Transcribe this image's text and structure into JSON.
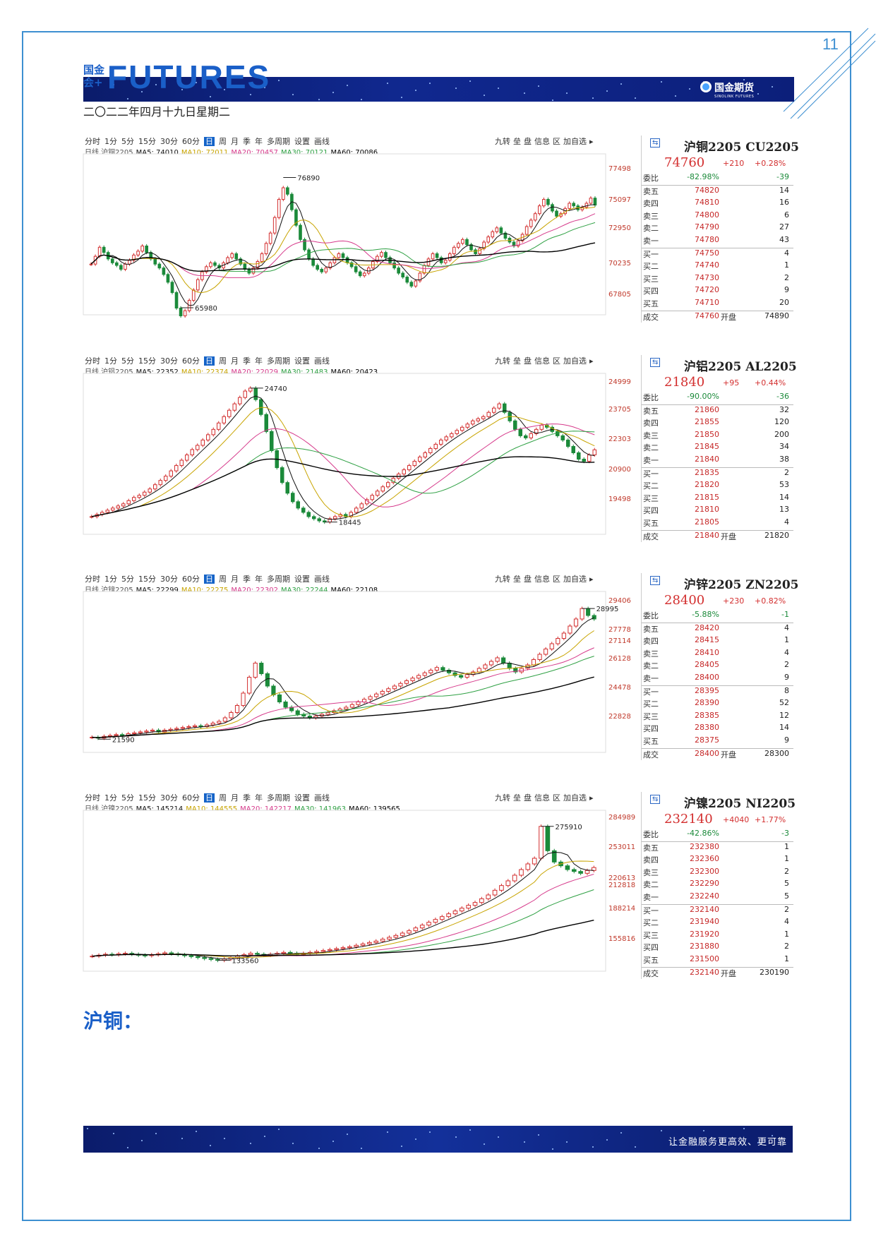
{
  "page": {
    "number": "11",
    "date": "二〇二二年四月十九日星期二"
  },
  "header": {
    "logo_cn": "国金会+",
    "logo_word": "FUTURES",
    "brand_cn": "国金期货",
    "brand_en": "SINOLINK FUTURES"
  },
  "footer": {
    "slogan": "让金融服务更高效、更可靠"
  },
  "section": {
    "title": "沪铜："
  },
  "toolbar": {
    "left": [
      "分时",
      "1分",
      "5分",
      "15分",
      "30分",
      "60分",
      "日",
      "周",
      "月",
      "季",
      "年",
      "多周期",
      "设置",
      "画线"
    ],
    "active": "日",
    "right": [
      "九转",
      "垒",
      "盘",
      "信息",
      "区",
      "加自选",
      "▸"
    ]
  },
  "colors": {
    "up": "#d32f2f",
    "down": "#1b8a3a",
    "ma5": "#111111",
    "ma10": "#c8a400",
    "ma20": "#d63a8b",
    "ma30": "#2ea043",
    "ma60": "#000000",
    "accent": "#1a5fc8"
  },
  "chart_data": [
    {
      "type": "line",
      "title": "沪铜2205 CU2205",
      "ma_text": {
        "prefix": "日线 沪铜2205",
        "ma5": "MA5: 74010",
        "ma10": "MA10: 72011",
        "ma20": "MA20: 70457",
        "ma30": "MA30: 70121",
        "ma60": "MA60: 70086"
      },
      "y_ticks": [
        "77498",
        "75097",
        "72950",
        "70235",
        "67805"
      ],
      "ylim": [
        66500,
        78500
      ],
      "annotations": [
        {
          "label": "76890",
          "value": 76890
        },
        {
          "label": "65980",
          "value": 65980
        }
      ],
      "close": [
        70200,
        70800,
        71500,
        71100,
        70600,
        70300,
        70100,
        69800,
        70200,
        70500,
        70900,
        71200,
        71600,
        71100,
        70600,
        70200,
        69900,
        69400,
        68800,
        68000,
        66800,
        66200,
        66600,
        67400,
        68200,
        69000,
        69600,
        70000,
        70300,
        70100,
        69900,
        70300,
        70700,
        71000,
        70600,
        70200,
        69800,
        69500,
        69900,
        70400,
        71000,
        71800,
        72600,
        73800,
        75200,
        76100,
        75600,
        74400,
        73200,
        72100,
        71300,
        70600,
        70100,
        69800,
        69600,
        69900,
        70300,
        70700,
        71000,
        70700,
        70300,
        70000,
        69600,
        69300,
        69500,
        69900,
        70400,
        70800,
        71100,
        70700,
        70300,
        69900,
        69500,
        69200,
        68800,
        68500,
        68900,
        69500,
        70100,
        70600,
        71000,
        70700,
        70300,
        70500,
        71000,
        71500,
        71800,
        72100,
        71700,
        71300,
        71000,
        71400,
        71900,
        72300,
        72700,
        73000,
        72600,
        72200,
        71900,
        71600,
        72000,
        72500,
        73100,
        73600,
        74100,
        74700,
        75200,
        74800,
        74300,
        73900,
        74100,
        74500,
        74900,
        74700,
        74400,
        74600,
        74900,
        75300,
        74760
      ],
      "quote": {
        "price": "74760",
        "chg": "+210",
        "pct": "+0.28%",
        "rows": [
          [
            "委比",
            "-82.98%",
            "",
            "-39"
          ],
          [
            "卖五",
            "74820",
            "",
            "14"
          ],
          [
            "卖四",
            "74810",
            "",
            "16"
          ],
          [
            "卖三",
            "74800",
            "",
            "6"
          ],
          [
            "卖二",
            "74790",
            "",
            "27"
          ],
          [
            "卖一",
            "74780",
            "",
            "43"
          ],
          [
            "买一",
            "74750",
            "",
            "4"
          ],
          [
            "买二",
            "74740",
            "",
            "1"
          ],
          [
            "买三",
            "74730",
            "",
            "2"
          ],
          [
            "买四",
            "74720",
            "",
            "9"
          ],
          [
            "买五",
            "74710",
            "",
            "20"
          ],
          [
            "成交",
            "74760",
            "开盘",
            "74890"
          ]
        ]
      }
    },
    {
      "type": "line",
      "title": "沪铝2205 AL2205",
      "ma_text": {
        "prefix": "日线 沪铝2205",
        "ma5": "MA5: 22352",
        "ma10": "MA10: 22374",
        "ma20": "MA20: 22029",
        "ma30": "MA30: 21483",
        "ma60": "MA60: 20423"
      },
      "y_ticks": [
        "24999",
        "23705",
        "22303",
        "20900",
        "19498"
      ],
      "ylim": [
        18000,
        25300
      ],
      "annotations": [
        {
          "label": "24740",
          "value": 24740
        },
        {
          "label": "18445",
          "value": 18445
        }
      ],
      "close": [
        18700,
        18800,
        18900,
        19000,
        19100,
        19200,
        19300,
        19450,
        19600,
        19700,
        19850,
        20000,
        20200,
        20400,
        20600,
        20850,
        21100,
        21350,
        21600,
        21850,
        22050,
        22300,
        22550,
        22800,
        23100,
        23400,
        23700,
        24000,
        24300,
        24600,
        24740,
        24200,
        23500,
        22700,
        21800,
        21000,
        20300,
        19800,
        19400,
        19100,
        18900,
        18700,
        18600,
        18500,
        18445,
        18600,
        18700,
        18800,
        18700,
        18900,
        19100,
        19300,
        19500,
        19700,
        19900,
        20100,
        20300,
        20500,
        20700,
        20900,
        21100,
        21300,
        21500,
        21700,
        21900,
        22100,
        22300,
        22450,
        22600,
        22750,
        22900,
        23050,
        23200,
        23300,
        23400,
        23600,
        23800,
        24000,
        23600,
        23200,
        22800,
        22500,
        22400,
        22600,
        22800,
        23000,
        22900,
        22700,
        22500,
        22300,
        22000,
        21700,
        21400,
        21300,
        21600,
        21840
      ],
      "quote": {
        "price": "21840",
        "chg": "+95",
        "pct": "+0.44%",
        "rows": [
          [
            "委比",
            "-90.00%",
            "",
            "-36"
          ],
          [
            "卖五",
            "21860",
            "",
            "32"
          ],
          [
            "卖四",
            "21855",
            "",
            "120"
          ],
          [
            "卖三",
            "21850",
            "",
            "200"
          ],
          [
            "卖二",
            "21845",
            "",
            "34"
          ],
          [
            "卖一",
            "21840",
            "",
            "38"
          ],
          [
            "买一",
            "21835",
            "",
            "2"
          ],
          [
            "买二",
            "21820",
            "",
            "53"
          ],
          [
            "买三",
            "21815",
            "",
            "14"
          ],
          [
            "买四",
            "21810",
            "",
            "13"
          ],
          [
            "买五",
            "21805",
            "",
            "4"
          ],
          [
            "成交",
            "21840",
            "开盘",
            "21820"
          ]
        ]
      }
    },
    {
      "type": "line",
      "title": "沪锌2205 ZN2205",
      "ma_text": {
        "prefix": "日线 沪锌2205",
        "ma5": "MA5: 22299",
        "ma10": "MA10: 22275",
        "ma20": "MA20: 22302",
        "ma30": "MA30: 22244",
        "ma60": "MA60: 22108"
      },
      "y_ticks": [
        "29406",
        "27778",
        "27114",
        "26128",
        "24478",
        "22828"
      ],
      "ylim": [
        21000,
        29800
      ],
      "annotations": [
        {
          "label": "28995",
          "value": 28995
        },
        {
          "label": "21590",
          "value": 21590
        }
      ],
      "close": [
        21700,
        21650,
        21750,
        21800,
        21850,
        21800,
        21900,
        21950,
        22000,
        22050,
        22100,
        22000,
        22100,
        22150,
        22200,
        22250,
        22300,
        22350,
        22300,
        22400,
        22500,
        22600,
        22800,
        23100,
        23500,
        24200,
        25100,
        25900,
        25300,
        24600,
        24100,
        23700,
        23400,
        23200,
        23000,
        22900,
        22800,
        22900,
        23000,
        23100,
        23200,
        23300,
        23400,
        23550,
        23700,
        23850,
        24000,
        24150,
        24300,
        24450,
        24600,
        24750,
        24900,
        25050,
        25200,
        25350,
        25500,
        25650,
        25500,
        25350,
        25200,
        25100,
        25250,
        25400,
        25600,
        25800,
        26000,
        26200,
        25900,
        25600,
        25400,
        25600,
        25800,
        26100,
        26400,
        26700,
        27000,
        27300,
        27600,
        28000,
        28400,
        28995,
        28600,
        28400
      ],
      "quote": {
        "price": "28400",
        "chg": "+230",
        "pct": "+0.82%",
        "rows": [
          [
            "委比",
            "-5.88%",
            "",
            "-1"
          ],
          [
            "卖五",
            "28420",
            "",
            "4"
          ],
          [
            "卖四",
            "28415",
            "",
            "1"
          ],
          [
            "卖三",
            "28410",
            "",
            "4"
          ],
          [
            "卖二",
            "28405",
            "",
            "2"
          ],
          [
            "卖一",
            "28400",
            "",
            "9"
          ],
          [
            "买一",
            "28395",
            "",
            "8"
          ],
          [
            "买二",
            "28390",
            "",
            "52"
          ],
          [
            "买三",
            "28385",
            "",
            "12"
          ],
          [
            "买四",
            "28380",
            "",
            "14"
          ],
          [
            "买五",
            "28375",
            "",
            "9"
          ],
          [
            "成交",
            "28400",
            "开盘",
            "28300"
          ]
        ]
      }
    },
    {
      "type": "line",
      "title": "沪镍2205 NI2205",
      "ma_text": {
        "prefix": "日线 沪镍2205",
        "ma5": "MA5: 145214",
        "ma10": "MA10: 144555",
        "ma20": "MA20: 142217",
        "ma30": "MA30: 141963",
        "ma60": "MA60: 139565"
      },
      "y_ticks": [
        "284989",
        "253011",
        "220613",
        "212818",
        "188214",
        "155816"
      ],
      "ylim": [
        125000,
        290000
      ],
      "annotations": [
        {
          "label": "275910",
          "value": 275910
        },
        {
          "label": "133560",
          "value": 133560
        }
      ],
      "close": [
        138000,
        139000,
        140000,
        139500,
        140500,
        141000,
        140000,
        139000,
        138500,
        139500,
        140500,
        141500,
        140500,
        139500,
        138500,
        137500,
        136500,
        135500,
        134500,
        133560,
        135000,
        136500,
        138000,
        139500,
        141000,
        140000,
        139000,
        140000,
        141000,
        142000,
        141000,
        140000,
        141000,
        142000,
        143000,
        144000,
        145000,
        146000,
        147000,
        148000,
        149500,
        151000,
        152500,
        154000,
        156000,
        158000,
        160000,
        162500,
        165000,
        168000,
        171000,
        174000,
        177000,
        180000,
        183000,
        186000,
        189000,
        192000,
        195000,
        199000,
        203000,
        208000,
        213000,
        218000,
        224000,
        230000,
        236000,
        242000,
        275910,
        250000,
        238000,
        234000,
        230000,
        228000,
        226000,
        229000,
        232140
      ],
      "quote": {
        "price": "232140",
        "chg": "+4040",
        "pct": "+1.77%",
        "rows": [
          [
            "委比",
            "-42.86%",
            "",
            "-3"
          ],
          [
            "卖五",
            "232380",
            "",
            "1"
          ],
          [
            "卖四",
            "232360",
            "",
            "1"
          ],
          [
            "卖三",
            "232300",
            "",
            "2"
          ],
          [
            "卖二",
            "232290",
            "",
            "5"
          ],
          [
            "卖一",
            "232240",
            "",
            "5"
          ],
          [
            "买一",
            "232140",
            "",
            "2"
          ],
          [
            "买二",
            "231940",
            "",
            "4"
          ],
          [
            "买三",
            "231920",
            "",
            "1"
          ],
          [
            "买四",
            "231880",
            "",
            "2"
          ],
          [
            "买五",
            "231500",
            "",
            "1"
          ],
          [
            "成交",
            "232140",
            "开盘",
            "230190"
          ]
        ]
      }
    }
  ]
}
